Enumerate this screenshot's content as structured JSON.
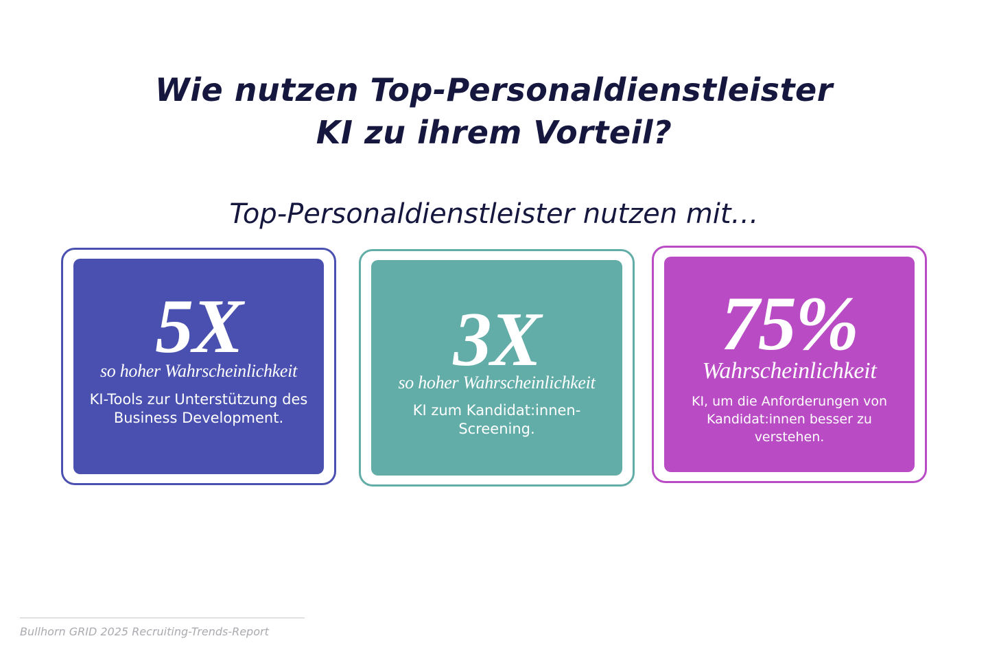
{
  "header": {
    "title_line1": "Wie nutzen Top-Personaldienstleister",
    "title_line2": "KI zu ihrem Vorteil?",
    "subtitle": "Top-Personaldienstleister nutzen mit…"
  },
  "cards": [
    {
      "stat": "5X",
      "qualifier": "so hoher Wahrscheinlichkeit",
      "description": "KI-Tools zur Unterstützung des Business Development.",
      "color": "#4a50b0"
    },
    {
      "stat": "3X",
      "qualifier": "so hoher Wahrscheinlichkeit",
      "description": "KI zum Kandidat:innen-Screening.",
      "color": "#62ada8"
    },
    {
      "stat": "75%",
      "qualifier": "Wahrscheinlichkeit",
      "description": "KI, um die Anforderungen von Kandidat:innen besser zu verstehen.",
      "color": "#b94bc4"
    }
  ],
  "footer": {
    "source": "Bullhorn GRID 2025 Recruiting-Trends-Report"
  },
  "colors": {
    "title": "#15173f",
    "footer_text": "#aaaab0"
  }
}
